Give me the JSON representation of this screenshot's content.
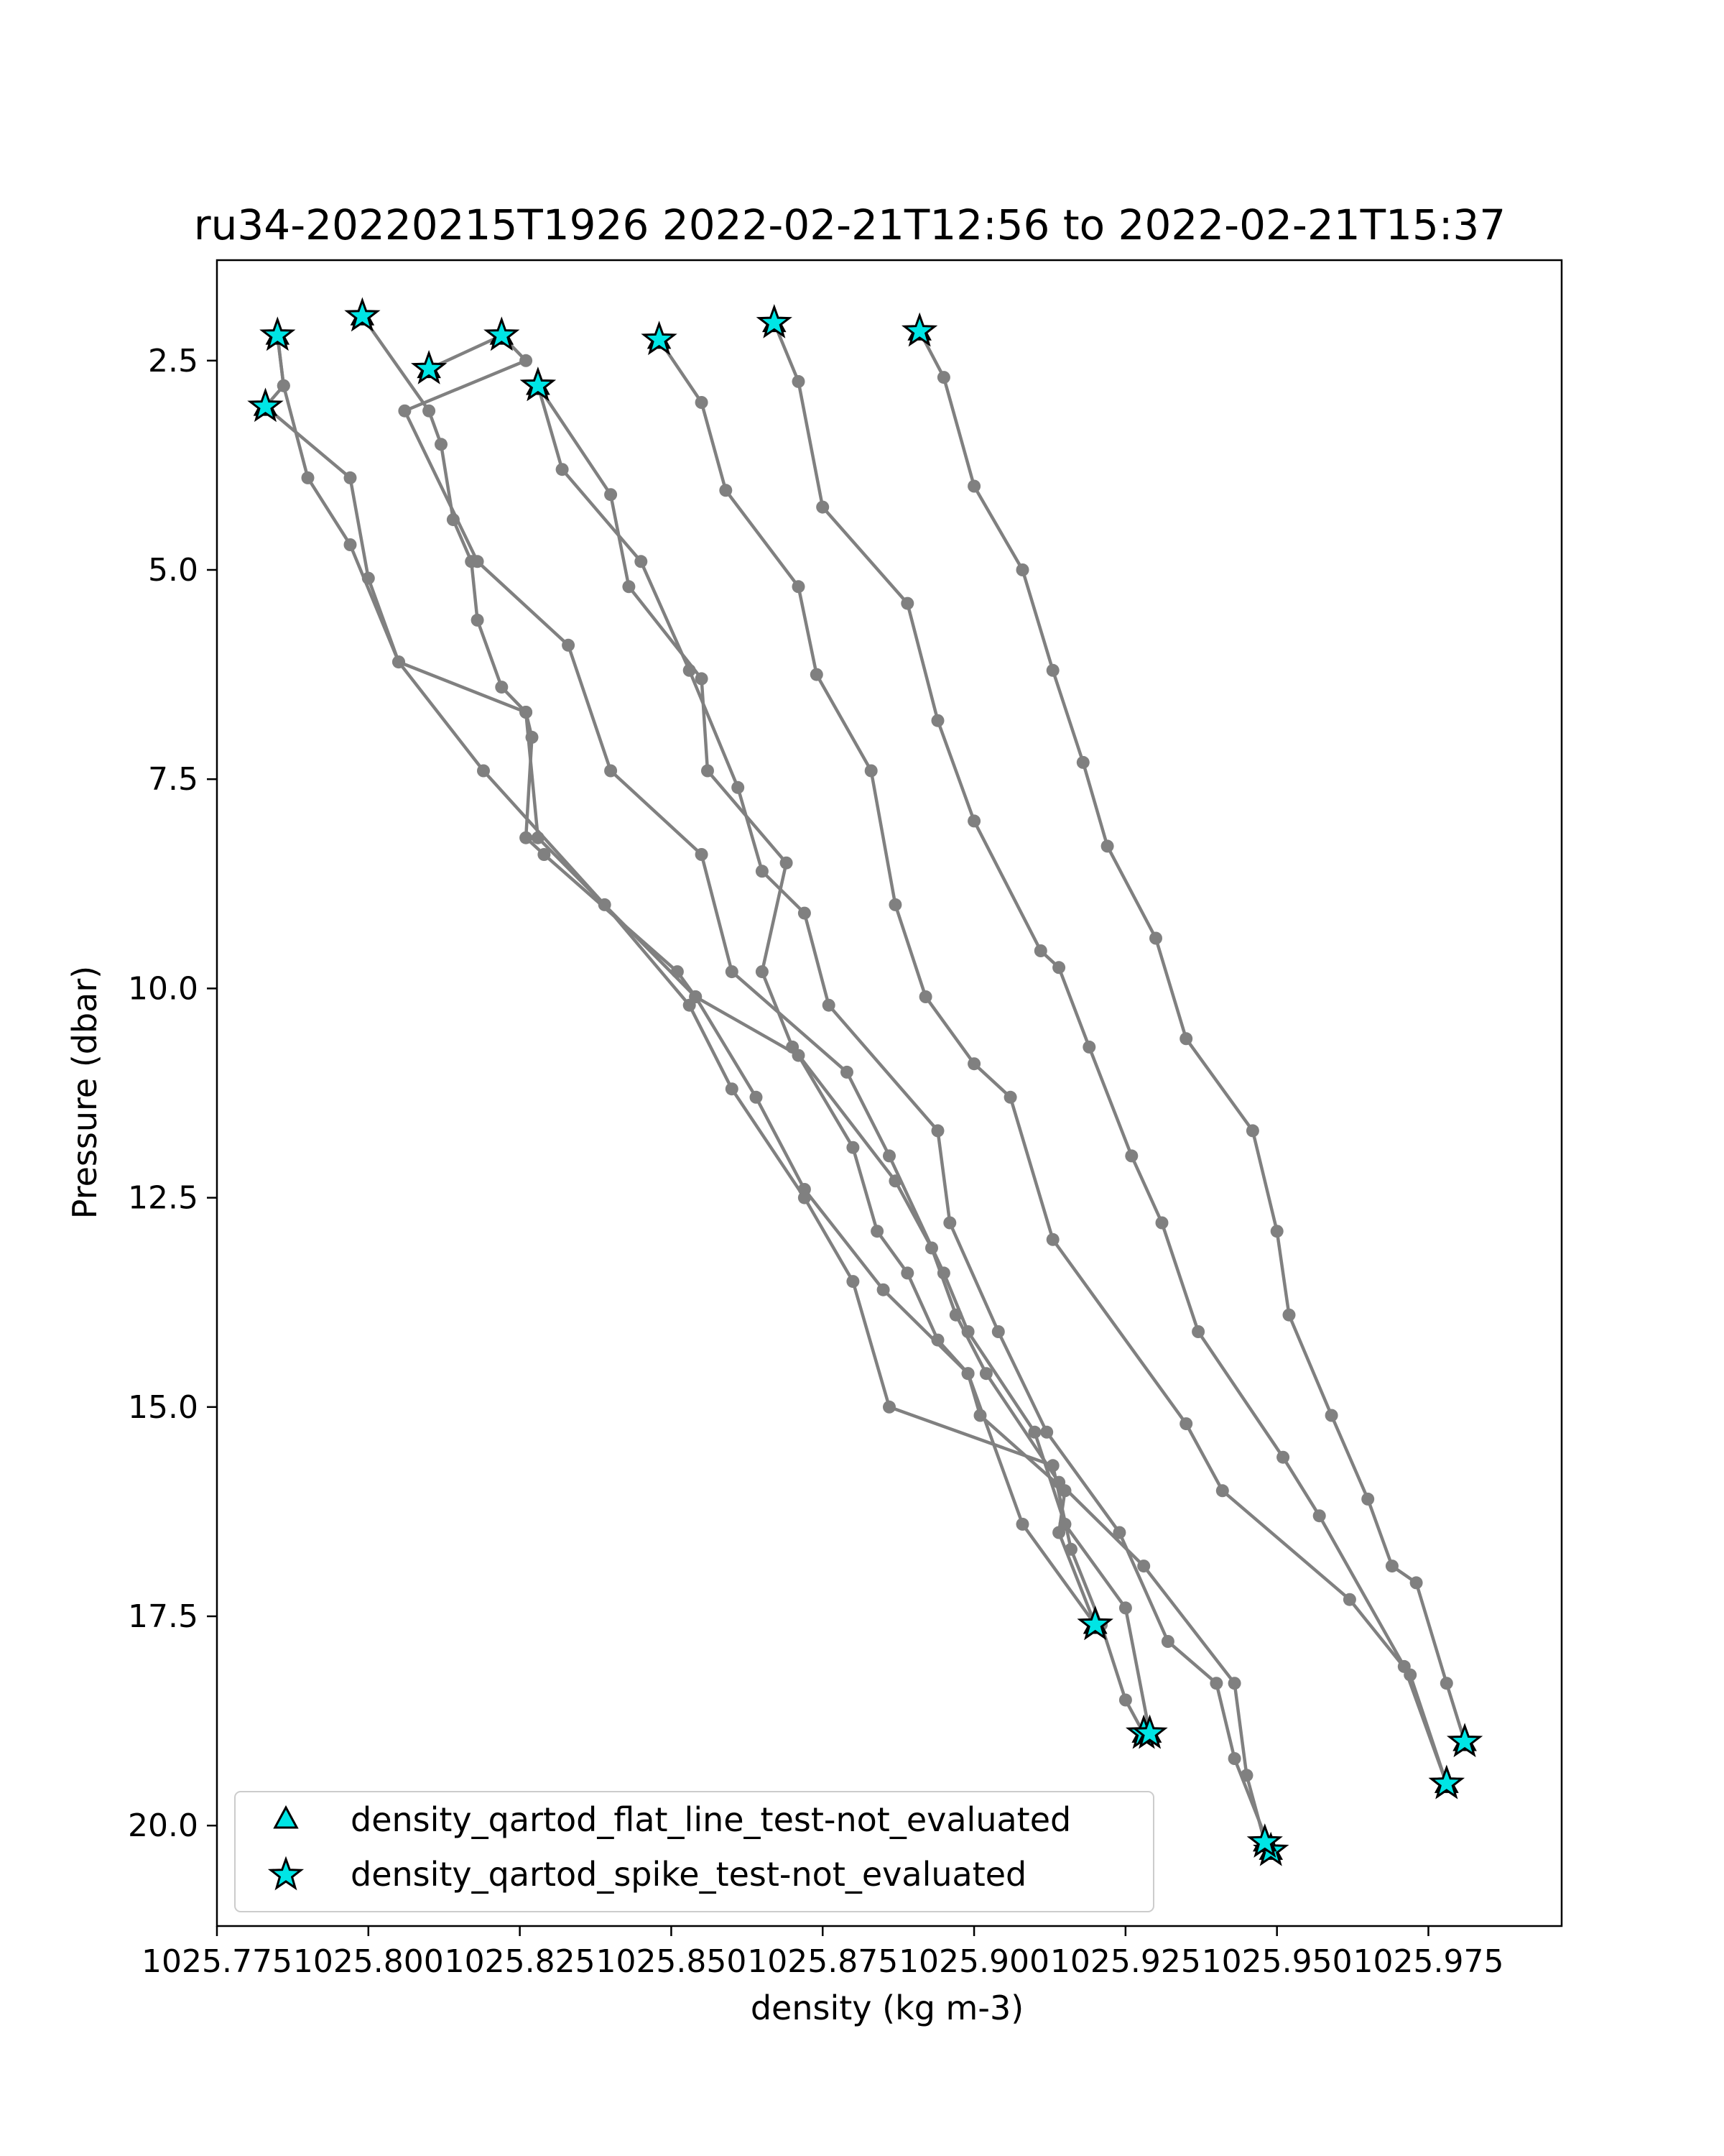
{
  "chart_data": {
    "type": "line",
    "title": "ru34-20220215T1926 2022-02-21T12:56 to 2022-02-21T15:37",
    "xlabel": "density (kg m-3)",
    "ylabel": "Pressure (dbar)",
    "xlim": [
      1025.775,
      1025.997
    ],
    "ylim": [
      21.2,
      1.3
    ],
    "y_inverted": true,
    "grid": false,
    "xticks": [
      1025.775,
      1025.8,
      1025.825,
      1025.85,
      1025.875,
      1025.9,
      1025.925,
      1025.95,
      1025.975
    ],
    "xtick_labels": [
      "1025.775",
      "1025.800",
      "1025.825",
      "1025.850",
      "1025.875",
      "1025.900",
      "1025.925",
      "1025.950",
      "1025.975"
    ],
    "yticks": [
      2.5,
      5.0,
      7.5,
      10.0,
      12.5,
      15.0,
      17.5,
      20.0
    ],
    "ytick_labels": [
      "2.5",
      "5.0",
      "7.5",
      "10.0",
      "12.5",
      "15.0",
      "17.5",
      "20.0"
    ],
    "line_color": "#808080",
    "marker_face_color": "#00e5e5",
    "marker_edge_color": "#000000",
    "series": [
      {
        "points": [
          [
            1025.799,
            1.97
          ],
          [
            1025.81,
            3.1
          ],
          [
            1025.812,
            3.5
          ],
          [
            1025.814,
            4.4
          ],
          [
            1025.817,
            4.9
          ],
          [
            1025.818,
            5.6
          ],
          [
            1025.822,
            6.4
          ],
          [
            1025.826,
            6.7
          ],
          [
            1025.827,
            7.0
          ],
          [
            1025.826,
            8.2
          ],
          [
            1025.829,
            8.4
          ],
          [
            1025.851,
            9.8
          ],
          [
            1025.854,
            10.1
          ],
          [
            1025.871,
            10.8
          ],
          [
            1025.88,
            11.9
          ],
          [
            1025.884,
            12.9
          ],
          [
            1025.889,
            13.4
          ],
          [
            1025.894,
            14.2
          ],
          [
            1025.899,
            14.6
          ],
          [
            1025.901,
            15.1
          ],
          [
            1025.915,
            16.0
          ],
          [
            1025.914,
            16.5
          ],
          [
            1025.92,
            17.6
          ]
        ],
        "flags": [
          0,
          22
        ]
      },
      {
        "points": [
          [
            1025.785,
            2.2
          ],
          [
            1025.786,
            2.8
          ],
          [
            1025.79,
            3.9
          ],
          [
            1025.797,
            4.7
          ],
          [
            1025.805,
            6.1
          ],
          [
            1025.826,
            6.7
          ],
          [
            1025.828,
            8.2
          ],
          [
            1025.854,
            10.1
          ],
          [
            1025.864,
            11.3
          ],
          [
            1025.872,
            12.4
          ],
          [
            1025.885,
            13.6
          ],
          [
            1025.899,
            14.6
          ],
          [
            1025.908,
            16.4
          ],
          [
            1025.92,
            17.6
          ]
        ],
        "flags": [
          0,
          13
        ]
      },
      {
        "points": [
          [
            1025.785,
            2.2
          ],
          [
            1025.786,
            2.8
          ],
          [
            1025.783,
            3.05
          ],
          [
            1025.797,
            3.9
          ],
          [
            1025.8,
            5.1
          ],
          [
            1025.805,
            6.1
          ],
          [
            1025.819,
            7.4
          ],
          [
            1025.839,
            9.0
          ],
          [
            1025.853,
            10.2
          ],
          [
            1025.86,
            11.2
          ],
          [
            1025.872,
            12.5
          ],
          [
            1025.88,
            13.5
          ],
          [
            1025.886,
            15.0
          ],
          [
            1025.913,
            15.7
          ],
          [
            1025.916,
            16.7
          ],
          [
            1025.921,
            17.6
          ],
          [
            1025.925,
            18.5
          ],
          [
            1025.928,
            18.9
          ]
        ],
        "flags": [
          2,
          17
        ]
      },
      {
        "points": [
          [
            1025.81,
            2.6
          ],
          [
            1025.822,
            2.2
          ],
          [
            1025.826,
            2.5
          ],
          [
            1025.806,
            3.1
          ],
          [
            1025.818,
            4.9
          ],
          [
            1025.833,
            5.9
          ],
          [
            1025.84,
            7.4
          ],
          [
            1025.855,
            8.4
          ],
          [
            1025.86,
            9.8
          ],
          [
            1025.879,
            11.0
          ],
          [
            1025.886,
            12.0
          ],
          [
            1025.895,
            13.4
          ],
          [
            1025.899,
            14.1
          ],
          [
            1025.91,
            15.3
          ],
          [
            1025.915,
            16.4
          ],
          [
            1025.925,
            17.4
          ],
          [
            1025.929,
            18.9
          ]
        ],
        "flags": [
          0,
          1,
          16
        ]
      },
      {
        "points": [
          [
            1025.828,
            2.8
          ],
          [
            1025.832,
            3.8
          ],
          [
            1025.845,
            4.9
          ],
          [
            1025.853,
            6.2
          ],
          [
            1025.861,
            7.6
          ],
          [
            1025.865,
            8.6
          ],
          [
            1025.872,
            9.1
          ],
          [
            1025.876,
            10.2
          ],
          [
            1025.894,
            11.7
          ],
          [
            1025.896,
            12.8
          ],
          [
            1025.904,
            14.1
          ],
          [
            1025.912,
            15.3
          ],
          [
            1025.924,
            16.5
          ],
          [
            1025.932,
            17.8
          ],
          [
            1025.94,
            18.3
          ],
          [
            1025.943,
            19.2
          ],
          [
            1025.949,
            20.3
          ]
        ],
        "flags": [
          0,
          16
        ]
      },
      {
        "points": [
          [
            1025.828,
            2.8
          ],
          [
            1025.84,
            4.1
          ],
          [
            1025.843,
            5.2
          ],
          [
            1025.855,
            6.3
          ],
          [
            1025.856,
            7.4
          ],
          [
            1025.869,
            8.5
          ],
          [
            1025.865,
            9.8
          ],
          [
            1025.87,
            10.7
          ],
          [
            1025.887,
            12.3
          ],
          [
            1025.893,
            13.1
          ],
          [
            1025.897,
            13.9
          ],
          [
            1025.902,
            14.6
          ],
          [
            1025.914,
            15.9
          ],
          [
            1025.928,
            16.9
          ],
          [
            1025.943,
            18.3
          ],
          [
            1025.945,
            19.4
          ],
          [
            1025.948,
            20.2
          ]
        ],
        "flags": [
          0,
          16
        ]
      },
      {
        "points": [
          [
            1025.848,
            2.25
          ],
          [
            1025.855,
            3.0
          ],
          [
            1025.859,
            4.05
          ],
          [
            1025.871,
            5.2
          ],
          [
            1025.874,
            6.25
          ],
          [
            1025.883,
            7.4
          ],
          [
            1025.887,
            9.0
          ],
          [
            1025.892,
            10.1
          ],
          [
            1025.9,
            10.9
          ],
          [
            1025.906,
            11.3
          ],
          [
            1025.913,
            13.0
          ],
          [
            1025.935,
            15.2
          ],
          [
            1025.941,
            16.0
          ],
          [
            1025.962,
            17.3
          ],
          [
            1025.972,
            18.2
          ],
          [
            1025.978,
            19.5
          ]
        ],
        "flags": [
          0,
          15
        ]
      },
      {
        "points": [
          [
            1025.867,
            2.05
          ],
          [
            1025.871,
            2.75
          ],
          [
            1025.875,
            4.25
          ],
          [
            1025.889,
            5.4
          ],
          [
            1025.894,
            6.8
          ],
          [
            1025.9,
            8.0
          ],
          [
            1025.911,
            9.55
          ],
          [
            1025.914,
            9.75
          ],
          [
            1025.919,
            10.7
          ],
          [
            1025.926,
            12.0
          ],
          [
            1025.931,
            12.8
          ],
          [
            1025.937,
            14.1
          ],
          [
            1025.951,
            15.6
          ],
          [
            1025.957,
            16.3
          ],
          [
            1025.971,
            18.1
          ],
          [
            1025.978,
            19.5
          ]
        ],
        "flags": [
          0,
          15
        ]
      },
      {
        "points": [
          [
            1025.891,
            2.15
          ],
          [
            1025.895,
            2.7
          ],
          [
            1025.9,
            4.0
          ],
          [
            1025.908,
            5.0
          ],
          [
            1025.913,
            6.2
          ],
          [
            1025.918,
            7.3
          ],
          [
            1025.922,
            8.3
          ],
          [
            1025.93,
            9.4
          ],
          [
            1025.935,
            10.6
          ],
          [
            1025.946,
            11.7
          ],
          [
            1025.95,
            12.9
          ],
          [
            1025.952,
            13.9
          ],
          [
            1025.959,
            15.1
          ],
          [
            1025.965,
            16.1
          ],
          [
            1025.969,
            16.9
          ],
          [
            1025.973,
            17.1
          ],
          [
            1025.978,
            18.3
          ],
          [
            1025.981,
            19.0
          ]
        ],
        "flags": [
          0,
          17
        ]
      }
    ],
    "legend": {
      "placement": "lower-left",
      "entries": [
        {
          "marker": "triangle",
          "label": "density_qartod_flat_line_test-not_evaluated"
        },
        {
          "marker": "star",
          "label": "density_qartod_spike_test-not_evaluated"
        }
      ]
    }
  }
}
